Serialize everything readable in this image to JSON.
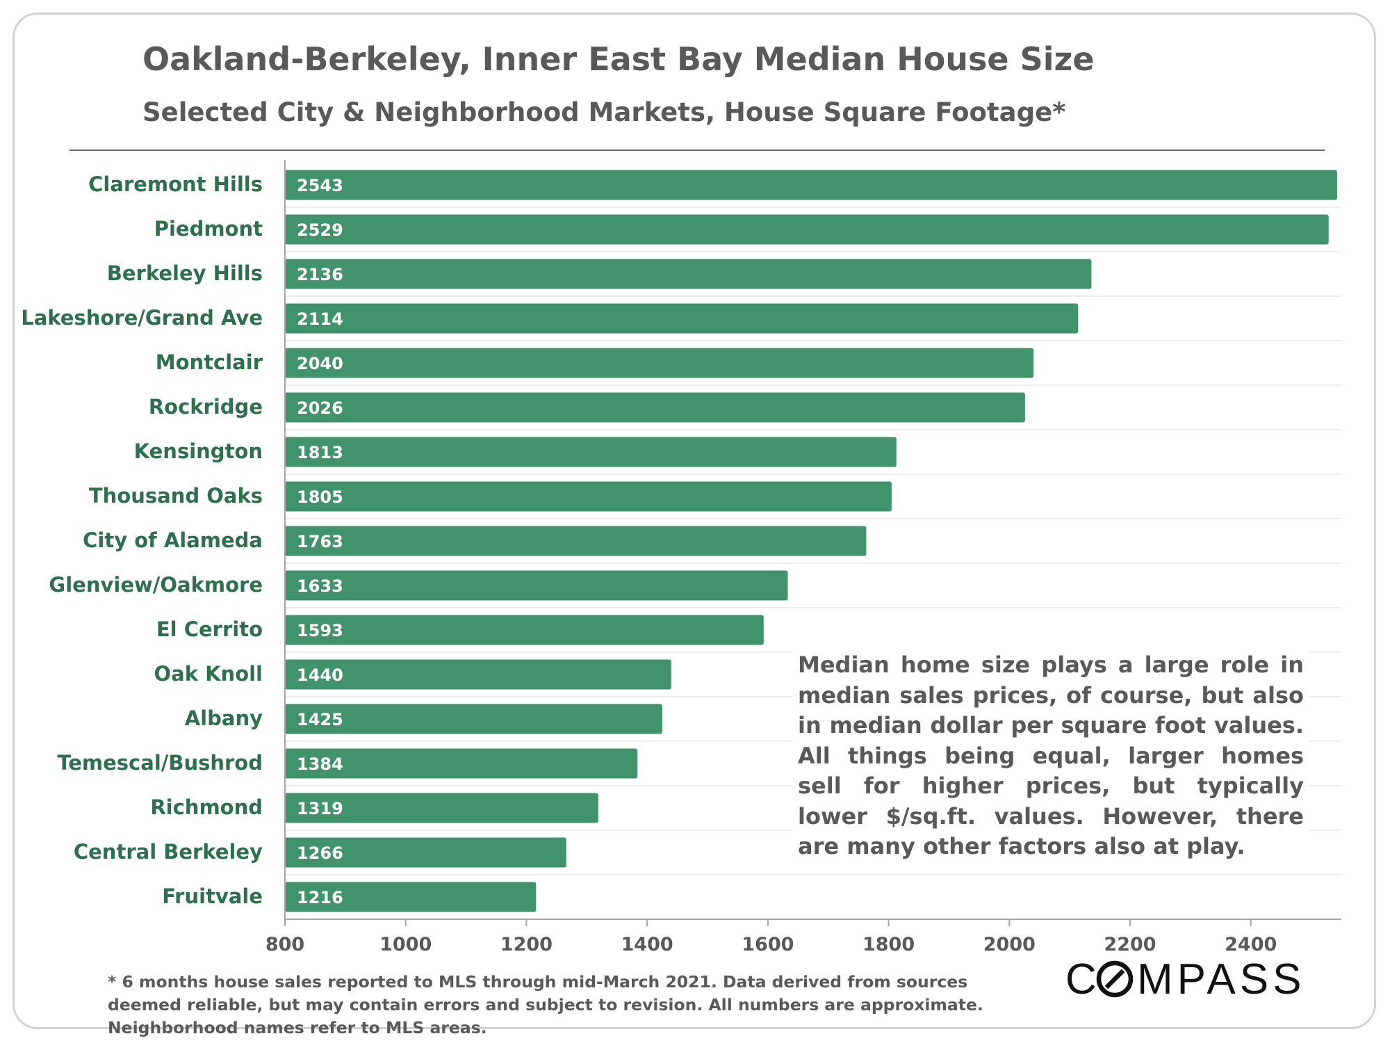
{
  "chart_data": {
    "type": "bar",
    "orientation": "horizontal",
    "title": "Oakland-Berkeley, Inner East Bay Median House Size",
    "subtitle": "Selected City & Neighborhood Markets, House Square Footage*",
    "categories": [
      "Claremont Hills",
      "Piedmont",
      "Berkeley Hills",
      "Lakeshore/Grand Ave",
      "Montclair",
      "Rockridge",
      "Kensington",
      "Thousand Oaks",
      "City of Alameda",
      "Glenview/Oakmore",
      "El Cerrito",
      "Oak Knoll",
      "Albany",
      "Temescal/Bushrod",
      "Richmond",
      "Central Berkeley",
      "Fruitvale"
    ],
    "values": [
      2543,
      2529,
      2136,
      2114,
      2040,
      2026,
      1813,
      1805,
      1763,
      1633,
      1593,
      1440,
      1425,
      1384,
      1319,
      1266,
      1216
    ],
    "xlim": [
      800,
      2550
    ],
    "xticks": [
      "800",
      "1000",
      "1200",
      "1400",
      "1600",
      "1800",
      "2000",
      "2200",
      "2400"
    ],
    "xlabel": "",
    "ylabel": "",
    "grid": "horizontal separators",
    "bar_color": "#41936b",
    "category_label_color": "#2e6f4e",
    "data_label_color": "#ffffff"
  },
  "note": "Median home size plays a large role in median sales prices, of course, but also in median dollar per square foot values. All things being equal, larger homes sell for higher prices, but typically lower $/sq.ft. values. However, there are many other factors also at play.",
  "footnote": "* 6 months house sales reported to MLS through mid-March 2021. Data derived from sources deemed reliable, but may contain errors and subject to revision. All numbers are approximate. Neighborhood names refer to MLS areas.",
  "brand": {
    "name": "COMPASS",
    "color": "#111111"
  },
  "colors": {
    "text": "#595959",
    "axis": "#a6a6a6",
    "separator": "#ececec",
    "border": "#d3d3d3"
  }
}
